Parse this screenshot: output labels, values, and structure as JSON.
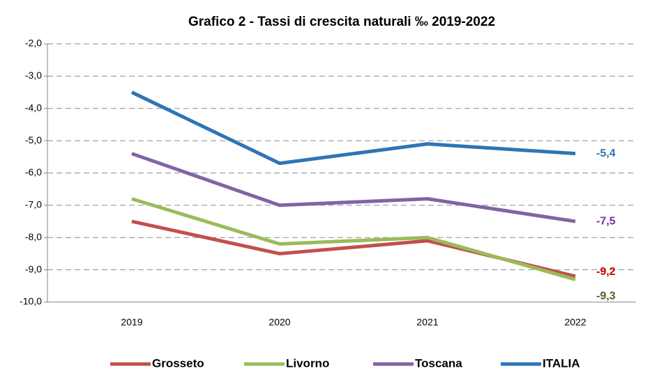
{
  "chart_data": {
    "type": "line",
    "title": "Grafico 2 - Tassi di crescita naturali ‰ 2019-2022",
    "categories": [
      "2019",
      "2020",
      "2021",
      "2022"
    ],
    "series": [
      {
        "name": "Grosseto",
        "color": "#c0504d",
        "label_color": "#c00000",
        "values": [
          -7.5,
          -8.5,
          -8.1,
          -9.2
        ],
        "value_labels": [
          null,
          null,
          null,
          "-9,2"
        ]
      },
      {
        "name": "Livorno",
        "color": "#9bbb59",
        "label_color": "#4f6228",
        "values": [
          -6.8,
          -8.2,
          -8.0,
          -9.3
        ],
        "value_labels": [
          null,
          null,
          null,
          "-9,3"
        ]
      },
      {
        "name": "Toscana",
        "color": "#8064a2",
        "label_color": "#7030a0",
        "values": [
          -5.4,
          -7.0,
          -6.8,
          -7.5
        ],
        "value_labels": [
          null,
          null,
          null,
          "-7,5"
        ]
      },
      {
        "name": "ITALIA",
        "color": "#2e75b6",
        "label_color": "#2e75b6",
        "values": [
          -3.5,
          -5.7,
          -5.1,
          -5.4
        ],
        "value_labels": [
          null,
          null,
          null,
          "-5,4"
        ]
      }
    ],
    "ylim": [
      -10,
      -2
    ],
    "yticks": [
      {
        "value": -10,
        "label": "-10,0"
      },
      {
        "value": -9,
        "label": "-9,0"
      },
      {
        "value": -8,
        "label": "-8,0"
      },
      {
        "value": -7,
        "label": "-7,0"
      },
      {
        "value": -6,
        "label": "-6,0"
      },
      {
        "value": -5,
        "label": "-5,0"
      },
      {
        "value": -4,
        "label": "-4,0"
      },
      {
        "value": -3,
        "label": "-3,0"
      },
      {
        "value": -2,
        "label": "-2,0"
      }
    ],
    "grid": true,
    "legend": "bottom"
  }
}
